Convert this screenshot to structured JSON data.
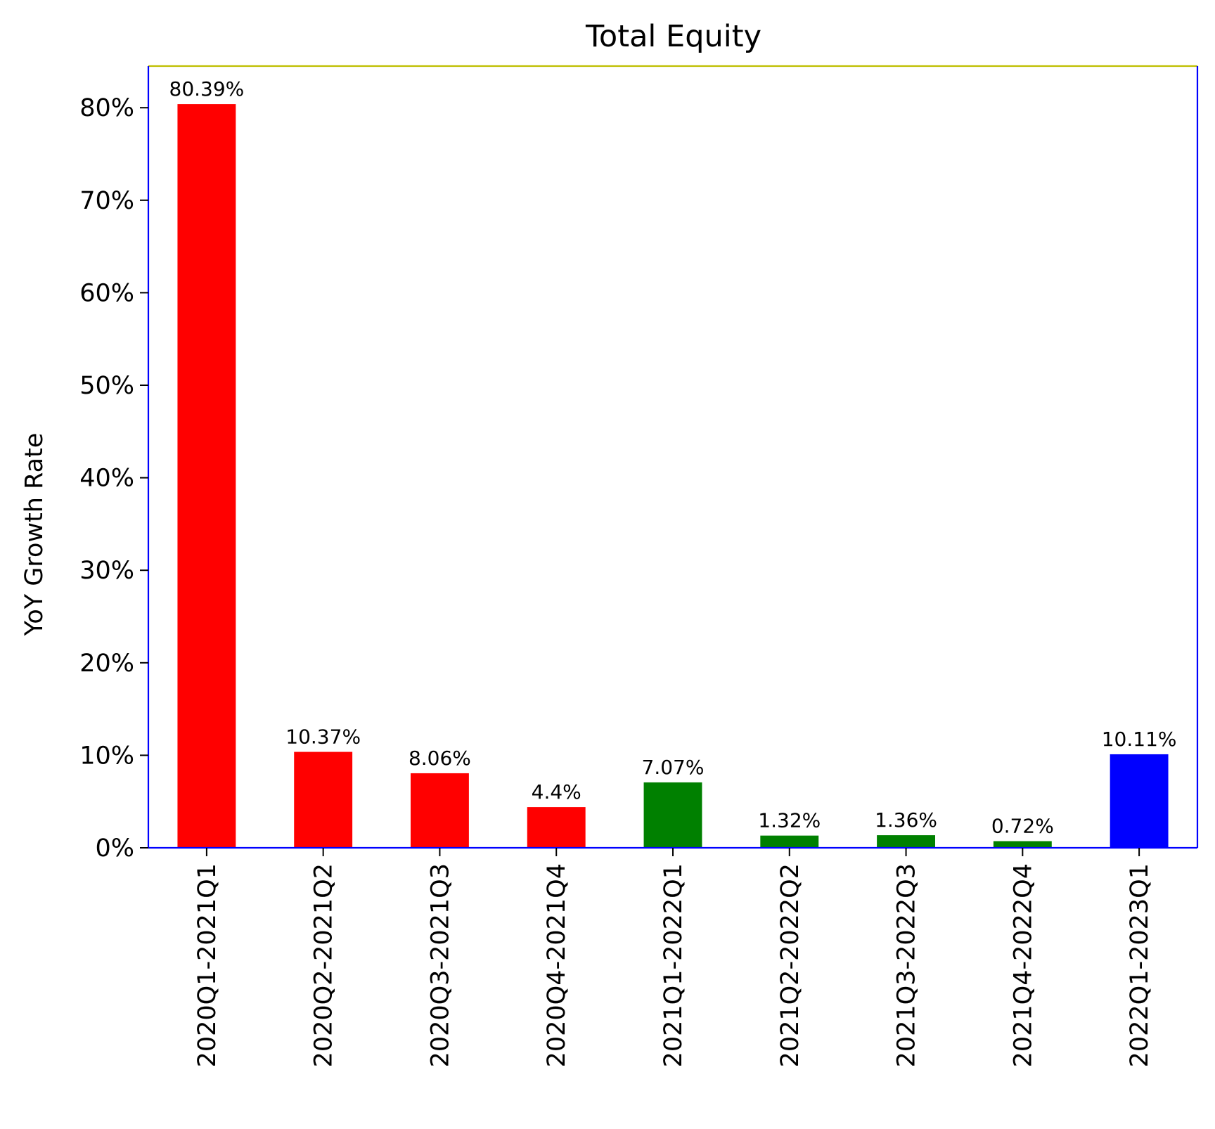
{
  "chart_data": {
    "type": "bar",
    "title": "Total Equity",
    "xlabel": "",
    "ylabel": "YoY Growth Rate",
    "ylim": [
      0,
      84.5
    ],
    "yticks": [
      0,
      10,
      20,
      30,
      40,
      50,
      60,
      70,
      80
    ],
    "ytick_labels": [
      "0%",
      "10%",
      "20%",
      "30%",
      "40%",
      "50%",
      "60%",
      "70%",
      "80%"
    ],
    "grid": false,
    "legend": "none",
    "categories": [
      "2020Q1-2021Q1",
      "2020Q2-2021Q2",
      "2020Q3-2021Q3",
      "2020Q4-2021Q4",
      "2021Q1-2022Q1",
      "2021Q2-2022Q2",
      "2021Q3-2022Q3",
      "2021Q4-2022Q4",
      "2022Q1-2023Q1"
    ],
    "values": [
      80.39,
      10.37,
      8.06,
      4.4,
      7.07,
      1.32,
      1.36,
      0.72,
      10.11
    ],
    "data_labels": [
      "80.39%",
      "10.37%",
      "8.06%",
      "4.4%",
      "7.07%",
      "1.32%",
      "1.36%",
      "0.72%",
      "10.11%"
    ],
    "bar_colors": [
      "#ff0000",
      "#ff0000",
      "#ff0000",
      "#ff0000",
      "#008000",
      "#008000",
      "#008000",
      "#008000",
      "#0000ff"
    ],
    "colors": {
      "axes_frame": "#0000ff",
      "top_spine": "#bfbf00",
      "text": "#000000"
    }
  }
}
